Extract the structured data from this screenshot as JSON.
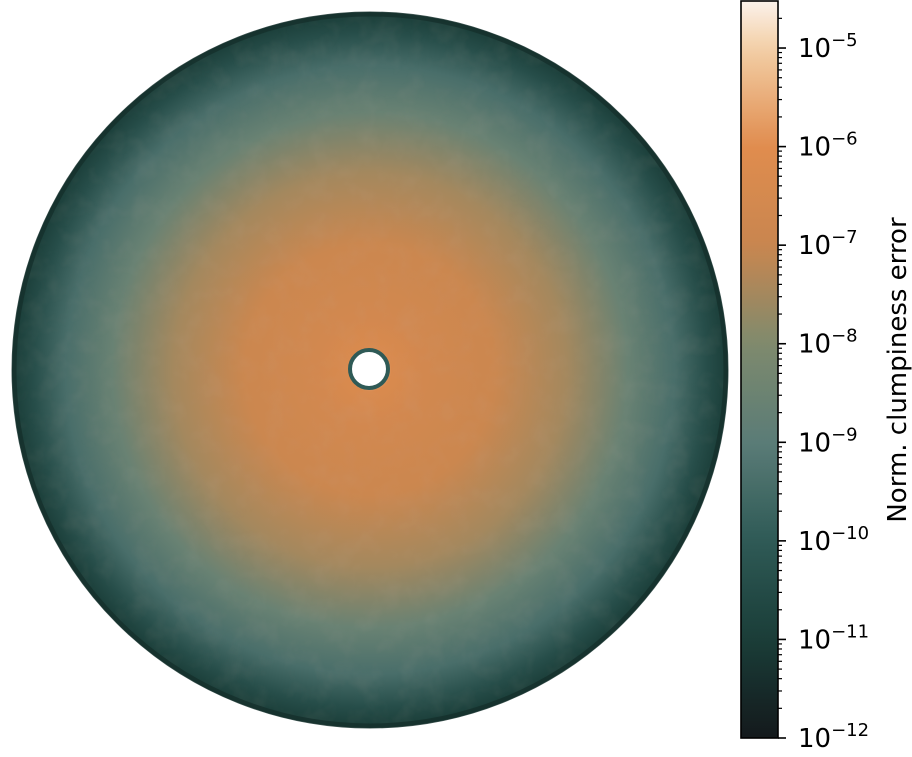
{
  "chart_data": {
    "type": "heatmap",
    "description_kind": "radial disc map with logarithmic colorbar",
    "colorbar": {
      "label": "Norm. clumpiness error",
      "scale": "log",
      "range": [
        1e-12,
        3e-05
      ],
      "ticks": [
        {
          "value": 1e-12,
          "base": "10",
          "exp": "−12"
        },
        {
          "value": 1e-11,
          "base": "10",
          "exp": "−11"
        },
        {
          "value": 1e-10,
          "base": "10",
          "exp": "−10"
        },
        {
          "value": 1e-09,
          "base": "10",
          "exp": "−9"
        },
        {
          "value": 1e-08,
          "base": "10",
          "exp": "−8"
        },
        {
          "value": 1e-07,
          "base": "10",
          "exp": "−7"
        },
        {
          "value": 1e-06,
          "base": "10",
          "exp": "−6"
        },
        {
          "value": 1e-05,
          "base": "10",
          "exp": "−5"
        }
      ],
      "colormap_stops": [
        {
          "log10": -12.0,
          "color": "#14191c"
        },
        {
          "log10": -11.0,
          "color": "#1a3d38"
        },
        {
          "log10": -10.0,
          "color": "#2f5a56"
        },
        {
          "log10": -9.0,
          "color": "#5a7c77"
        },
        {
          "log10": -8.0,
          "color": "#7f8a6d"
        },
        {
          "log10": -7.0,
          "color": "#c9864f"
        },
        {
          "log10": -6.0,
          "color": "#e08c4e"
        },
        {
          "log10": -5.0,
          "color": "#f3cfa6"
        },
        {
          "log10": -4.5,
          "color": "#fbf4ee"
        }
      ]
    },
    "radial_profile": [
      {
        "r": 0.0,
        "log10": -4.6
      },
      {
        "r": 0.06,
        "log10": -6.3
      },
      {
        "r": 0.15,
        "log10": -6.6
      },
      {
        "r": 0.35,
        "log10": -6.9
      },
      {
        "r": 0.55,
        "log10": -7.5
      },
      {
        "r": 0.72,
        "log10": -8.6
      },
      {
        "r": 0.85,
        "log10": -9.4
      },
      {
        "r": 0.94,
        "log10": -10.4
      },
      {
        "r": 1.0,
        "log10": -11.0
      }
    ],
    "grid": false,
    "axes_visible": false
  }
}
